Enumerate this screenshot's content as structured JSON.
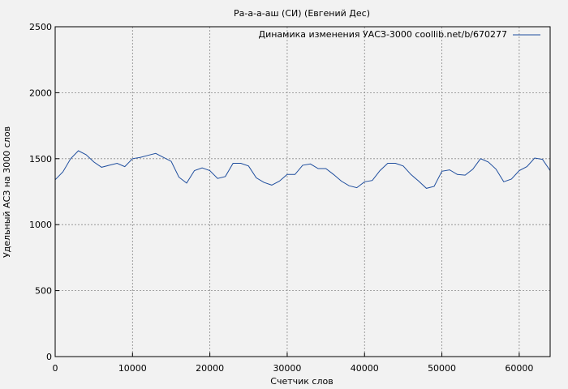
{
  "chart_data": {
    "type": "line",
    "title": "Ра-а-а-аш (СИ) (Евгений Дес)",
    "xlabel": "Счетчик слов",
    "ylabel": "Удельный АСЗ на 3000 слов",
    "xlim": [
      0,
      64000
    ],
    "ylim": [
      0,
      2500
    ],
    "x_ticks": [
      0,
      10000,
      20000,
      30000,
      40000,
      50000,
      60000
    ],
    "y_ticks": [
      0,
      500,
      1000,
      1500,
      2000,
      2500
    ],
    "grid": true,
    "legend_position": "top-right",
    "series": [
      {
        "name": "Динамика изменения УАСЗ-3000 coollib.net/b/670277",
        "color": "#1f4e9e",
        "x": [
          0,
          1000,
          2000,
          3000,
          4000,
          5000,
          6000,
          7000,
          8000,
          9000,
          10000,
          11000,
          12000,
          13000,
          14000,
          15000,
          16000,
          17000,
          18000,
          19000,
          20000,
          21000,
          22000,
          23000,
          24000,
          25000,
          26000,
          27000,
          28000,
          29000,
          30000,
          31000,
          32000,
          33000,
          34000,
          35000,
          36000,
          37000,
          38000,
          39000,
          40000,
          41000,
          42000,
          43000,
          44000,
          45000,
          46000,
          47000,
          48000,
          49000,
          50000,
          51000,
          52000,
          53000,
          54000,
          55000,
          56000,
          57000,
          58000,
          59000,
          60000,
          61000,
          62000,
          63000,
          64000
        ],
        "y": [
          1340,
          1400,
          1500,
          1560,
          1530,
          1475,
          1435,
          1450,
          1465,
          1440,
          1500,
          1510,
          1525,
          1540,
          1510,
          1480,
          1360,
          1315,
          1410,
          1430,
          1410,
          1350,
          1365,
          1465,
          1465,
          1445,
          1355,
          1320,
          1300,
          1330,
          1380,
          1380,
          1450,
          1460,
          1425,
          1425,
          1380,
          1330,
          1295,
          1280,
          1325,
          1335,
          1410,
          1465,
          1465,
          1445,
          1380,
          1330,
          1275,
          1290,
          1405,
          1415,
          1380,
          1375,
          1420,
          1500,
          1475,
          1420,
          1325,
          1345,
          1410,
          1440,
          1505,
          1495,
          1410
        ]
      }
    ]
  }
}
